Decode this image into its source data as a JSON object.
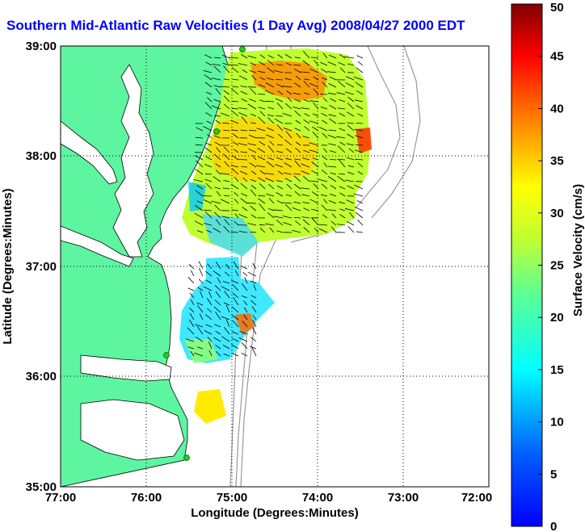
{
  "title": "Southern Mid-Atlantic Raw Velocities (1 Day Avg) 2008/04/27 2000 EDT",
  "map": {
    "xlabel": "Longitude (Degrees:Minutes)",
    "ylabel": "Latitude (Degrees:Minutes)",
    "lon_range": [
      -77,
      -72
    ],
    "lat_range": [
      35,
      39
    ],
    "x_ticks": [
      "77:00",
      "76:00",
      "75:00",
      "74:00",
      "73:00",
      "72:00"
    ],
    "y_ticks": [
      "39:00",
      "38:00",
      "37:00",
      "36:00",
      "35:00"
    ],
    "grid": "dotted",
    "land_color": "#5ef5a0",
    "bathymetry_color": "#999999",
    "site_color": "#22cc22"
  },
  "colorbar": {
    "label": "Surface Velocity (cm/s)",
    "min": 0,
    "max": 50,
    "ticks": [
      "0",
      "5",
      "10",
      "15",
      "20",
      "25",
      "30",
      "35",
      "40",
      "45",
      "50"
    ],
    "colormap": "jet"
  }
}
